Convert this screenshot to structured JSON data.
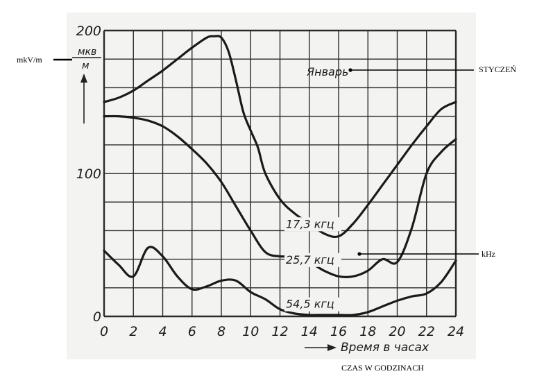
{
  "chart_data": {
    "type": "line",
    "title": "Январь",
    "xlabel": "Время в часах",
    "ylabel_unit_top": "мкв",
    "ylabel_unit_bottom": "м",
    "xlim": [
      0,
      24
    ],
    "ylim": [
      0,
      200
    ],
    "x_ticks": [
      "0",
      "2",
      "4",
      "6",
      "8",
      "10",
      "12",
      "14",
      "16",
      "18",
      "20",
      "22",
      "24"
    ],
    "y_ticks": [
      {
        "value": 0,
        "label": "0"
      },
      {
        "value": 100,
        "label": "100"
      },
      {
        "value": 200,
        "label": "200"
      }
    ],
    "grid": true,
    "series": [
      {
        "name": "17,3 кгц",
        "x": [
          0,
          1,
          2,
          3,
          4,
          5,
          6,
          7,
          7.5,
          8,
          8.5,
          9,
          9.5,
          10,
          10.5,
          11,
          12,
          13,
          14,
          15,
          16,
          17,
          18,
          19,
          20,
          21,
          22,
          23,
          24
        ],
        "y": [
          150,
          153,
          158,
          165,
          172,
          180,
          188,
          195,
          196,
          195,
          185,
          165,
          143,
          130,
          118,
          100,
          82,
          72,
          65,
          58,
          56,
          65,
          78,
          92,
          106,
          120,
          133,
          145,
          150
        ]
      },
      {
        "name": "25,7 кгц",
        "x": [
          0,
          1,
          2,
          3,
          4,
          5,
          6,
          7,
          8,
          9,
          10,
          11,
          12,
          13,
          14,
          15,
          16,
          17,
          18,
          19,
          20,
          21,
          22,
          23,
          24
        ],
        "y": [
          140,
          140,
          139,
          137,
          133,
          126,
          117,
          107,
          94,
          77,
          60,
          45,
          42,
          42,
          38,
          32,
          28,
          28,
          32,
          40,
          38,
          62,
          100,
          115,
          124
        ]
      },
      {
        "name": "54,5 кгц",
        "x": [
          0,
          1,
          2,
          3,
          4,
          5,
          6,
          7,
          8,
          9,
          10,
          11,
          12,
          13,
          14,
          15,
          16,
          17,
          18,
          19,
          20,
          21,
          22,
          23,
          24
        ],
        "y": [
          46,
          36,
          28,
          48,
          42,
          28,
          19,
          21,
          25,
          25,
          17,
          12,
          5,
          2,
          1,
          1,
          1,
          1,
          3,
          7,
          11,
          14,
          16,
          24,
          39
        ]
      }
    ]
  },
  "annotations": {
    "y_unit": "mkV/m",
    "title": "STYCZEŃ",
    "khz": "kHz",
    "x_axis": "CZAS W GODZINACH"
  }
}
